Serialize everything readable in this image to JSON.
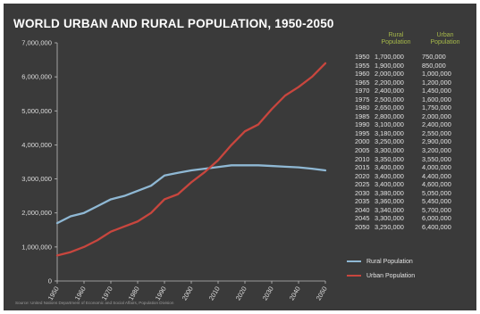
{
  "chart_data": {
    "type": "line",
    "title": "WORLD URBAN AND RURAL POPULATION, 1950-2050",
    "source": "Source: United Nations Department of Economic and Social Affairs, Population Division",
    "ylim": [
      0,
      7000000
    ],
    "xlim": [
      1950,
      2050
    ],
    "y_ticks": [
      "0",
      "1,000,000",
      "2,000,000",
      "3,000,000",
      "4,000,000",
      "5,000,000",
      "6,000,000",
      "7,000,000"
    ],
    "x_ticks": [
      "1950",
      "1960",
      "1970",
      "1980",
      "1990",
      "2000",
      "2010",
      "2020",
      "2030",
      "2040",
      "2050"
    ],
    "grid": false,
    "legend_position": "bottom-right",
    "x": [
      1950,
      1955,
      1960,
      1965,
      1970,
      1975,
      1980,
      1985,
      1990,
      1995,
      2000,
      2005,
      2010,
      2015,
      2020,
      2025,
      2030,
      2035,
      2040,
      2045,
      2050
    ],
    "series": [
      {
        "name": "Rural Population",
        "color": "#8fb8d4",
        "values": [
          1700000,
          1900000,
          2000000,
          2200000,
          2400000,
          2500000,
          2650000,
          2800000,
          3100000,
          3180000,
          3250000,
          3300000,
          3350000,
          3400000,
          3400000,
          3400000,
          3380000,
          3360000,
          3340000,
          3300000,
          3250000
        ]
      },
      {
        "name": "Urban Population",
        "color": "#c8463e",
        "values": [
          750000,
          850000,
          1000000,
          1200000,
          1450000,
          1600000,
          1750000,
          2000000,
          2400000,
          2550000,
          2900000,
          3200000,
          3550000,
          4000000,
          4400000,
          4600000,
          5050000,
          5450000,
          5700000,
          6000000,
          6400000
        ]
      }
    ],
    "table": {
      "headers": {
        "rural": [
          "Rural",
          "Population"
        ],
        "urban": [
          "Urban",
          "Population"
        ]
      },
      "rows": [
        [
          "1950",
          "1,700,000",
          "750,000"
        ],
        [
          "1955",
          "1,900,000",
          "850,000"
        ],
        [
          "1960",
          "2,000,000",
          "1,000,000"
        ],
        [
          "1965",
          "2,200,000",
          "1,200,000"
        ],
        [
          "1970",
          "2,400,000",
          "1,450,000"
        ],
        [
          "1975",
          "2,500,000",
          "1,600,000"
        ],
        [
          "1980",
          "2,650,000",
          "1,750,000"
        ],
        [
          "1985",
          "2,800,000",
          "2,000,000"
        ],
        [
          "1990",
          "3,100,000",
          "2,400,000"
        ],
        [
          "1995",
          "3,180,000",
          "2,550,000"
        ],
        [
          "2000",
          "3,250,000",
          "2,900,000"
        ],
        [
          "2005",
          "3,300,000",
          "3,200,000"
        ],
        [
          "2010",
          "3,350,000",
          "3,550,000"
        ],
        [
          "2015",
          "3,400,000",
          "4,000,000"
        ],
        [
          "2020",
          "3,400,000",
          "4,400,000"
        ],
        [
          "2025",
          "3,400,000",
          "4,600,000"
        ],
        [
          "2030",
          "3,380,000",
          "5,050,000"
        ],
        [
          "2035",
          "3,360,000",
          "5,450,000"
        ],
        [
          "2040",
          "3,340,000",
          "5,700,000"
        ],
        [
          "2045",
          "3,300,000",
          "6,000,000"
        ],
        [
          "2050",
          "3,250,000",
          "6,400,000"
        ]
      ]
    }
  }
}
